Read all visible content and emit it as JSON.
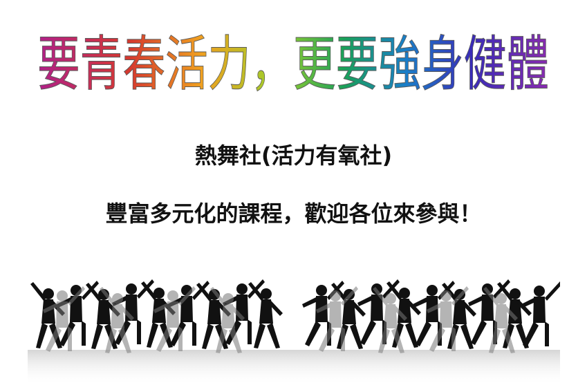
{
  "headline": {
    "text": "要青春活力，更要強身健體",
    "gradient": [
      "#b0208a",
      "#d63a2e",
      "#f0a020",
      "#9bd12c",
      "#1aa05a",
      "#1a7ec8",
      "#3a2bb8",
      "#8a2bb0"
    ]
  },
  "club_name": "熱舞社(活力有氧社)",
  "welcome_text": "豐富多元化的課程，歡迎各位來參與！",
  "illustration": {
    "icon": "dancing-silhouettes",
    "fill": "#111111"
  }
}
